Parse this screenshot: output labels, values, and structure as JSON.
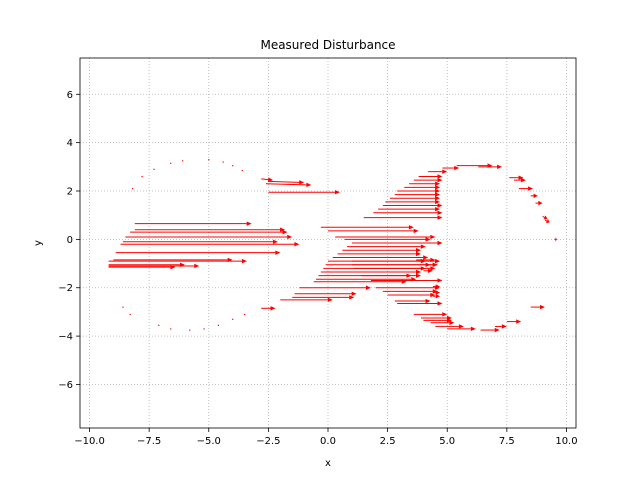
{
  "chart_data": {
    "type": "quiver",
    "title": "Measured Disturbance",
    "xlabel": "x",
    "ylabel": "y",
    "xlim": [
      -10.4,
      10.4
    ],
    "ylim": [
      -7.8,
      7.5
    ],
    "xticks": [
      -10.0,
      -7.5,
      -5.0,
      -2.5,
      0.0,
      2.5,
      5.0,
      7.5,
      10.0
    ],
    "xtick_labels": [
      "−10.0",
      "−7.5",
      "−5.0",
      "−2.5",
      "0.0",
      "2.5",
      "5.0",
      "7.5",
      "10.0"
    ],
    "yticks": [
      -6,
      -4,
      -2,
      0,
      2,
      4,
      6
    ],
    "ytick_labels": [
      "−6",
      "−4",
      "−2",
      "0",
      "2",
      "4",
      "6"
    ],
    "grid": true,
    "color": "#ff0000",
    "vectors": [
      {
        "x": -8.2,
        "y": 2.1,
        "u": 0.02,
        "v": 0
      },
      {
        "x": -7.8,
        "y": 2.6,
        "u": 0.02,
        "v": 0
      },
      {
        "x": -7.3,
        "y": 2.9,
        "u": 0.02,
        "v": 0
      },
      {
        "x": -6.6,
        "y": 3.15,
        "u": 0.02,
        "v": 0
      },
      {
        "x": -6.1,
        "y": 3.25,
        "u": 0.02,
        "v": 0
      },
      {
        "x": -5.0,
        "y": 3.3,
        "u": 0.02,
        "v": 0
      },
      {
        "x": -4.4,
        "y": 3.2,
        "u": 0.02,
        "v": 0
      },
      {
        "x": -4.0,
        "y": 3.05,
        "u": 0.02,
        "v": 0
      },
      {
        "x": -3.6,
        "y": 2.85,
        "u": 0.02,
        "v": 0
      },
      {
        "x": -8.6,
        "y": -2.8,
        "u": 0.02,
        "v": 0
      },
      {
        "x": -8.3,
        "y": -3.1,
        "u": 0.02,
        "v": 0
      },
      {
        "x": -7.1,
        "y": -3.55,
        "u": 0.02,
        "v": 0
      },
      {
        "x": -6.6,
        "y": -3.7,
        "u": 0.02,
        "v": 0
      },
      {
        "x": -5.8,
        "y": -3.75,
        "u": 0.02,
        "v": 0
      },
      {
        "x": -5.2,
        "y": -3.7,
        "u": 0.02,
        "v": 0
      },
      {
        "x": -4.6,
        "y": -3.55,
        "u": 0.02,
        "v": 0
      },
      {
        "x": -4.0,
        "y": -3.3,
        "u": 0.02,
        "v": 0
      },
      {
        "x": -3.5,
        "y": -3.1,
        "u": 0.05,
        "v": 0
      },
      {
        "x": -2.8,
        "y": 2.5,
        "u": 0.5,
        "v": -0.05
      },
      {
        "x": -2.5,
        "y": 2.4,
        "u": 1.5,
        "v": -0.05
      },
      {
        "x": -2.6,
        "y": 2.3,
        "u": 1.9,
        "v": -0.05
      },
      {
        "x": -2.5,
        "y": 1.95,
        "u": 3.0,
        "v": 0
      },
      {
        "x": -2.8,
        "y": -2.85,
        "u": 0.6,
        "v": 0
      },
      {
        "x": -2.0,
        "y": -2.5,
        "u": 2.2,
        "v": 0
      },
      {
        "x": -1.4,
        "y": -2.25,
        "u": 2.6,
        "v": 0
      },
      {
        "x": -1.5,
        "y": -2.4,
        "u": 2.6,
        "v": 0
      },
      {
        "x": -1.2,
        "y": -2.0,
        "u": 3.0,
        "v": 0
      },
      {
        "x": -8.1,
        "y": 0.65,
        "u": 4.9,
        "v": 0
      },
      {
        "x": -8.1,
        "y": 0.4,
        "u": 6.3,
        "v": 0
      },
      {
        "x": -8.3,
        "y": 0.3,
        "u": 6.6,
        "v": 0
      },
      {
        "x": -8.5,
        "y": 0.1,
        "u": 7.0,
        "v": 0
      },
      {
        "x": -8.6,
        "y": -0.1,
        "u": 6.5,
        "v": 0
      },
      {
        "x": -8.7,
        "y": -0.2,
        "u": 7.5,
        "v": 0
      },
      {
        "x": -8.9,
        "y": -0.55,
        "u": 6.9,
        "v": 0
      },
      {
        "x": -9.0,
        "y": -0.85,
        "u": 5.0,
        "v": 0
      },
      {
        "x": -9.2,
        "y": -0.9,
        "u": 5.8,
        "v": 0
      },
      {
        "x": -9.2,
        "y": -1.05,
        "u": 3.2,
        "v": 0
      },
      {
        "x": -9.2,
        "y": -1.15,
        "u": 2.8,
        "v": 0
      },
      {
        "x": -9.2,
        "y": -1.1,
        "u": 3.8,
        "v": 0
      },
      {
        "x": -0.3,
        "y": 0.5,
        "u": 3.9,
        "v": 0
      },
      {
        "x": 0.0,
        "y": 0.35,
        "u": 3.8,
        "v": 0
      },
      {
        "x": 0.3,
        "y": 0.1,
        "u": 4.2,
        "v": 0
      },
      {
        "x": 0.7,
        "y": 0.0,
        "u": 3.6,
        "v": 0
      },
      {
        "x": 1.0,
        "y": -0.15,
        "u": 3.8,
        "v": 0
      },
      {
        "x": 0.8,
        "y": -0.3,
        "u": 3.3,
        "v": 0
      },
      {
        "x": 0.6,
        "y": -0.45,
        "u": 3.3,
        "v": 0
      },
      {
        "x": 0.4,
        "y": -0.6,
        "u": 3.5,
        "v": 0
      },
      {
        "x": 0.2,
        "y": -0.75,
        "u": 4.0,
        "v": 0
      },
      {
        "x": 0.0,
        "y": -0.9,
        "u": 4.1,
        "v": 0
      },
      {
        "x": -0.1,
        "y": -1.05,
        "u": 4.4,
        "v": 0
      },
      {
        "x": -0.2,
        "y": -1.2,
        "u": 4.3,
        "v": 0
      },
      {
        "x": -0.3,
        "y": -1.35,
        "u": 4.2,
        "v": 0
      },
      {
        "x": -0.4,
        "y": -1.5,
        "u": 4.3,
        "v": 0
      },
      {
        "x": -0.5,
        "y": -1.65,
        "u": 4.2,
        "v": 0
      },
      {
        "x": -0.6,
        "y": -1.75,
        "u": 3.9,
        "v": 0
      },
      {
        "x": 1.0,
        "y": -0.9,
        "u": 3.7,
        "v": 0
      },
      {
        "x": 1.0,
        "y": -1.05,
        "u": 3.6,
        "v": 0
      },
      {
        "x": 1.1,
        "y": -1.2,
        "u": 3.4,
        "v": 0
      },
      {
        "x": 1.2,
        "y": -1.35,
        "u": 2.7,
        "v": 0
      },
      {
        "x": 1.4,
        "y": -1.5,
        "u": 2.1,
        "v": 0
      },
      {
        "x": 1.8,
        "y": -1.7,
        "u": 3.0,
        "v": 0
      },
      {
        "x": 2.0,
        "y": -2.0,
        "u": 2.7,
        "v": 0
      },
      {
        "x": 2.3,
        "y": -2.15,
        "u": 2.3,
        "v": 0
      },
      {
        "x": 2.5,
        "y": -2.3,
        "u": 2.0,
        "v": 0
      },
      {
        "x": 2.8,
        "y": -2.55,
        "u": 1.5,
        "v": 0
      },
      {
        "x": 2.9,
        "y": -2.65,
        "u": 1.9,
        "v": 0
      },
      {
        "x": 3.6,
        "y": -3.1,
        "u": 1.4,
        "v": 0
      },
      {
        "x": 3.9,
        "y": -3.25,
        "u": 1.3,
        "v": 0
      },
      {
        "x": 4.0,
        "y": -3.35,
        "u": 1.2,
        "v": 0
      },
      {
        "x": 4.3,
        "y": -3.45,
        "u": 1.0,
        "v": 0
      },
      {
        "x": 4.5,
        "y": -3.6,
        "u": 1.2,
        "v": 0
      },
      {
        "x": 5.0,
        "y": -3.7,
        "u": 1.2,
        "v": 0
      },
      {
        "x": 6.4,
        "y": -3.75,
        "u": 0.8,
        "v": 0
      },
      {
        "x": 7.0,
        "y": -3.6,
        "u": 0.5,
        "v": 0
      },
      {
        "x": 7.5,
        "y": -3.4,
        "u": 0.6,
        "v": 0
      },
      {
        "x": 8.5,
        "y": -2.8,
        "u": 0.6,
        "v": 0
      },
      {
        "x": 4.4,
        "y": -1.95,
        "u": 0.3,
        "v": 0
      },
      {
        "x": 4.4,
        "y": -2.2,
        "u": 0.3,
        "v": 0
      },
      {
        "x": 4.4,
        "y": -2.35,
        "u": 0.3,
        "v": 0
      },
      {
        "x": 3.7,
        "y": -0.85,
        "u": 0.8,
        "v": 0
      },
      {
        "x": 4.2,
        "y": -1.05,
        "u": 0.4,
        "v": 0
      },
      {
        "x": 4.0,
        "y": -1.3,
        "u": 0.4,
        "v": 0
      },
      {
        "x": 1.5,
        "y": 0.9,
        "u": 3.3,
        "v": 0
      },
      {
        "x": 1.9,
        "y": 1.1,
        "u": 2.9,
        "v": 0
      },
      {
        "x": 2.1,
        "y": 1.25,
        "u": 2.6,
        "v": 0
      },
      {
        "x": 2.3,
        "y": 1.4,
        "u": 2.5,
        "v": 0
      },
      {
        "x": 2.4,
        "y": 1.55,
        "u": 2.3,
        "v": 0
      },
      {
        "x": 2.6,
        "y": 1.7,
        "u": 2.1,
        "v": 0
      },
      {
        "x": 2.8,
        "y": 1.85,
        "u": 1.9,
        "v": 0
      },
      {
        "x": 2.9,
        "y": 2.0,
        "u": 1.8,
        "v": 0
      },
      {
        "x": 3.2,
        "y": 2.15,
        "u": 1.5,
        "v": 0
      },
      {
        "x": 3.4,
        "y": 2.3,
        "u": 1.3,
        "v": 0
      },
      {
        "x": 3.6,
        "y": 2.45,
        "u": 1.2,
        "v": 0
      },
      {
        "x": 3.8,
        "y": 2.6,
        "u": 1.0,
        "v": 0
      },
      {
        "x": 4.2,
        "y": 2.8,
        "u": 0.8,
        "v": 0
      },
      {
        "x": 4.8,
        "y": 2.95,
        "u": 0.7,
        "v": 0
      },
      {
        "x": 5.4,
        "y": 3.05,
        "u": 1.5,
        "v": 0
      },
      {
        "x": 6.3,
        "y": 3.0,
        "u": 1.0,
        "v": 0
      },
      {
        "x": 7.6,
        "y": 2.55,
        "u": 0.6,
        "v": 0
      },
      {
        "x": 7.8,
        "y": 2.45,
        "u": 0.5,
        "v": 0
      },
      {
        "x": 8.0,
        "y": 2.1,
        "u": 0.6,
        "v": 0
      },
      {
        "x": 8.5,
        "y": 1.8,
        "u": 0.3,
        "v": 0
      },
      {
        "x": 8.7,
        "y": 1.5,
        "u": 0.3,
        "v": 0
      },
      {
        "x": 9.0,
        "y": 0.95,
        "u": 0.2,
        "v": -0.1
      },
      {
        "x": 9.1,
        "y": 0.8,
        "u": 0.2,
        "v": -0.1
      },
      {
        "x": 9.5,
        "y": 0.0,
        "u": 0.1,
        "v": 0
      }
    ]
  }
}
